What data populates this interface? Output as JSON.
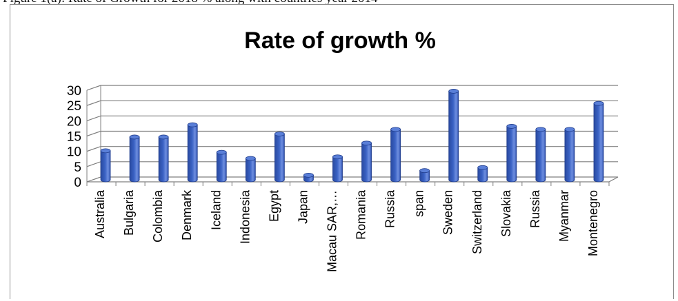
{
  "caption": "Figure 1(a): Rate of Growth for 2018 % along with countries year 2014",
  "chart_data": {
    "type": "bar",
    "title": "Rate of growth %",
    "xlabel": "",
    "ylabel": "",
    "ylim": [
      0,
      30
    ],
    "yticks": [
      0,
      5,
      10,
      15,
      20,
      25,
      30
    ],
    "grid": true,
    "legend": "none",
    "style": "3d-cylinder",
    "bar_color": "#3a62c4",
    "categories": [
      "Australia",
      "Bulgaria",
      "Colombia",
      "Denmark",
      "Iceland",
      "Indonesia",
      "Egypt",
      "Japan",
      "Macau SAR,…",
      "Romania",
      "Russia",
      "span",
      "Sweden",
      "Switzerland",
      "Slovakia",
      "Russia",
      "Myanmar",
      "Montenegro"
    ],
    "values": [
      9.5,
      14,
      14,
      18,
      9,
      7,
      15,
      1.5,
      7.5,
      12,
      16.5,
      3,
      29,
      4,
      17.5,
      16.5,
      16.5,
      25
    ]
  }
}
